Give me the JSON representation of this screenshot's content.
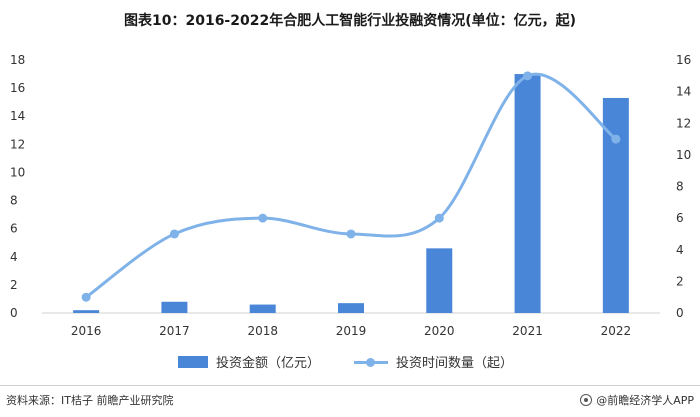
{
  "title": "图表10：2016-2022年合肥人工智能行业投融资情况(单位：亿元，起)",
  "chart_data": {
    "type": "bar",
    "categories": [
      "2016",
      "2017",
      "2018",
      "2019",
      "2020",
      "2021",
      "2022"
    ],
    "series": [
      {
        "name": "投资金额（亿元）",
        "type": "bar",
        "axis": "left",
        "values": [
          0.2,
          0.8,
          0.6,
          0.7,
          4.6,
          17.0,
          15.3
        ]
      },
      {
        "name": "投资时间数量（起）",
        "type": "line",
        "axis": "right",
        "smooth": true,
        "values": [
          1,
          5,
          6,
          5,
          6,
          15,
          11
        ]
      }
    ],
    "y_left": {
      "min": 0,
      "max": 18,
      "ticks": [
        0,
        2,
        4,
        6,
        8,
        10,
        12,
        14,
        16,
        18
      ]
    },
    "y_right": {
      "min": 0,
      "max": 16,
      "ticks": [
        0,
        2,
        4,
        6,
        8,
        10,
        12,
        14,
        16
      ]
    },
    "legend_position": "bottom",
    "colors": {
      "bar": "#4a86d8",
      "line": "#7fb2e8"
    }
  },
  "footer": {
    "source": "资料来源：IT桔子 前瞻产业研究院",
    "brand": "@前瞻经济学人APP"
  }
}
